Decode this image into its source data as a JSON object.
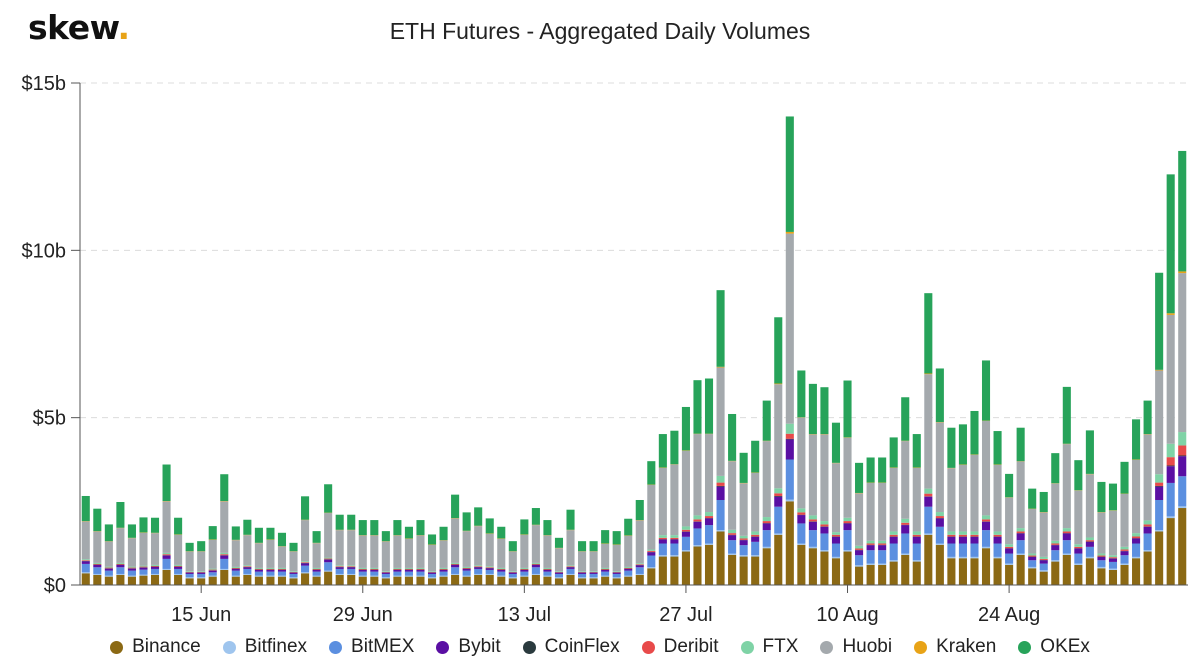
{
  "header": {
    "logo_text": "skew",
    "logo_dot": ".",
    "title": "ETH Futures - Aggregated Daily Volumes"
  },
  "chart_data": {
    "type": "bar",
    "stacked": true,
    "title": "ETH Futures - Aggregated Daily Volumes",
    "xlabel": "",
    "ylabel": "",
    "ylim": [
      0,
      15
    ],
    "y_unit": "billions USD",
    "y_ticks": [
      {
        "value": 0,
        "label": "$0"
      },
      {
        "value": 5,
        "label": "$5b"
      },
      {
        "value": 10,
        "label": "$10b"
      },
      {
        "value": 15,
        "label": "$15b"
      }
    ],
    "x_ticks": [
      {
        "index": 10,
        "label": "15 Jun"
      },
      {
        "index": 24,
        "label": "29 Jun"
      },
      {
        "index": 38,
        "label": "13 Jul"
      },
      {
        "index": 52,
        "label": "27 Jul"
      },
      {
        "index": 66,
        "label": "10 Aug"
      },
      {
        "index": 80,
        "label": "24 Aug"
      }
    ],
    "grid": true,
    "legend_position": "bottom",
    "series": [
      {
        "name": "Binance",
        "color": "#8b6914",
        "values": [
          0.35,
          0.3,
          0.25,
          0.3,
          0.25,
          0.28,
          0.3,
          0.45,
          0.3,
          0.2,
          0.2,
          0.25,
          0.45,
          0.25,
          0.3,
          0.25,
          0.25,
          0.25,
          0.2,
          0.35,
          0.25,
          0.4,
          0.3,
          0.3,
          0.25,
          0.25,
          0.2,
          0.25,
          0.25,
          0.25,
          0.2,
          0.25,
          0.3,
          0.25,
          0.3,
          0.3,
          0.25,
          0.2,
          0.25,
          0.3,
          0.25,
          0.2,
          0.3,
          0.2,
          0.2,
          0.25,
          0.2,
          0.25,
          0.3,
          0.5,
          0.85,
          0.85,
          1.0,
          1.15,
          1.2,
          1.6,
          0.9,
          0.85,
          0.85,
          1.1,
          1.5,
          2.5,
          1.2,
          1.1,
          1.0,
          0.8,
          1.0,
          0.55,
          0.6,
          0.6,
          0.7,
          0.9,
          0.7,
          1.5,
          1.2,
          0.8,
          0.8,
          0.8,
          1.1,
          0.8,
          0.6,
          0.9,
          0.5,
          0.4,
          0.7,
          0.9,
          0.6,
          0.8,
          0.5,
          0.45,
          0.6,
          0.8,
          1.0,
          1.6,
          2.0,
          2.3
        ]
      },
      {
        "name": "Bitfinex",
        "color": "#9fc5ee",
        "values": [
          0.03,
          0.03,
          0.03,
          0.03,
          0.03,
          0.03,
          0.03,
          0.03,
          0.03,
          0.03,
          0.03,
          0.03,
          0.03,
          0.03,
          0.03,
          0.03,
          0.03,
          0.03,
          0.03,
          0.03,
          0.03,
          0.03,
          0.03,
          0.03,
          0.03,
          0.03,
          0.03,
          0.03,
          0.03,
          0.03,
          0.03,
          0.03,
          0.03,
          0.03,
          0.03,
          0.03,
          0.03,
          0.03,
          0.03,
          0.03,
          0.03,
          0.03,
          0.03,
          0.03,
          0.03,
          0.03,
          0.03,
          0.03,
          0.03,
          0.03,
          0.04,
          0.04,
          0.04,
          0.04,
          0.04,
          0.04,
          0.04,
          0.04,
          0.04,
          0.04,
          0.04,
          0.05,
          0.04,
          0.04,
          0.04,
          0.04,
          0.04,
          0.04,
          0.04,
          0.04,
          0.04,
          0.04,
          0.04,
          0.04,
          0.04,
          0.04,
          0.04,
          0.04,
          0.04,
          0.04,
          0.04,
          0.04,
          0.04,
          0.04,
          0.04,
          0.04,
          0.04,
          0.04,
          0.04,
          0.04,
          0.04,
          0.04,
          0.04,
          0.04,
          0.05,
          0.05
        ]
      },
      {
        "name": "BitMEX",
        "color": "#5b8fe0",
        "values": [
          0.25,
          0.2,
          0.15,
          0.2,
          0.15,
          0.15,
          0.15,
          0.3,
          0.15,
          0.1,
          0.1,
          0.1,
          0.3,
          0.15,
          0.15,
          0.12,
          0.12,
          0.12,
          0.1,
          0.2,
          0.12,
          0.25,
          0.15,
          0.15,
          0.12,
          0.12,
          0.1,
          0.12,
          0.12,
          0.12,
          0.1,
          0.12,
          0.2,
          0.15,
          0.15,
          0.12,
          0.12,
          0.1,
          0.12,
          0.2,
          0.12,
          0.1,
          0.15,
          0.1,
          0.1,
          0.12,
          0.1,
          0.15,
          0.2,
          0.35,
          0.35,
          0.35,
          0.4,
          0.5,
          0.55,
          0.9,
          0.4,
          0.3,
          0.4,
          0.5,
          0.8,
          1.2,
          0.6,
          0.5,
          0.5,
          0.4,
          0.6,
          0.3,
          0.4,
          0.4,
          0.5,
          0.6,
          0.5,
          0.8,
          0.5,
          0.4,
          0.4,
          0.4,
          0.5,
          0.4,
          0.3,
          0.4,
          0.2,
          0.2,
          0.3,
          0.4,
          0.3,
          0.3,
          0.2,
          0.2,
          0.25,
          0.4,
          0.5,
          0.9,
          1.0,
          0.9
        ]
      },
      {
        "name": "Bybit",
        "color": "#5a0fa3",
        "values": [
          0.08,
          0.07,
          0.06,
          0.07,
          0.06,
          0.06,
          0.06,
          0.1,
          0.06,
          0.04,
          0.04,
          0.05,
          0.1,
          0.05,
          0.05,
          0.05,
          0.05,
          0.05,
          0.04,
          0.07,
          0.05,
          0.08,
          0.05,
          0.05,
          0.05,
          0.05,
          0.04,
          0.05,
          0.05,
          0.05,
          0.04,
          0.05,
          0.07,
          0.05,
          0.05,
          0.05,
          0.05,
          0.04,
          0.05,
          0.07,
          0.05,
          0.04,
          0.05,
          0.04,
          0.04,
          0.05,
          0.04,
          0.05,
          0.06,
          0.1,
          0.12,
          0.12,
          0.15,
          0.2,
          0.2,
          0.4,
          0.15,
          0.15,
          0.15,
          0.2,
          0.3,
          0.6,
          0.25,
          0.25,
          0.2,
          0.2,
          0.2,
          0.15,
          0.15,
          0.15,
          0.2,
          0.25,
          0.2,
          0.3,
          0.25,
          0.2,
          0.2,
          0.2,
          0.25,
          0.2,
          0.15,
          0.2,
          0.1,
          0.1,
          0.15,
          0.2,
          0.15,
          0.15,
          0.1,
          0.1,
          0.12,
          0.15,
          0.2,
          0.4,
          0.5,
          0.6
        ]
      },
      {
        "name": "CoinFlex",
        "color": "#2a3a3e",
        "values": [
          0.01,
          0.01,
          0.01,
          0.01,
          0.01,
          0.01,
          0.01,
          0.01,
          0.01,
          0.01,
          0.01,
          0.01,
          0.01,
          0.01,
          0.01,
          0.01,
          0.01,
          0.01,
          0.01,
          0.01,
          0.01,
          0.01,
          0.01,
          0.01,
          0.01,
          0.01,
          0.01,
          0.01,
          0.01,
          0.01,
          0.01,
          0.01,
          0.01,
          0.01,
          0.01,
          0.01,
          0.01,
          0.01,
          0.01,
          0.01,
          0.01,
          0.01,
          0.01,
          0.01,
          0.01,
          0.01,
          0.01,
          0.01,
          0.01,
          0.01,
          0.01,
          0.01,
          0.01,
          0.01,
          0.01,
          0.02,
          0.01,
          0.01,
          0.01,
          0.01,
          0.02,
          0.02,
          0.01,
          0.01,
          0.01,
          0.01,
          0.01,
          0.01,
          0.01,
          0.01,
          0.01,
          0.01,
          0.01,
          0.01,
          0.01,
          0.01,
          0.01,
          0.01,
          0.01,
          0.01,
          0.01,
          0.01,
          0.01,
          0.01,
          0.01,
          0.01,
          0.01,
          0.01,
          0.01,
          0.01,
          0.01,
          0.01,
          0.01,
          0.02,
          0.02,
          0.02
        ]
      },
      {
        "name": "Deribit",
        "color": "#e84a4a",
        "values": [
          0.02,
          0.02,
          0.02,
          0.02,
          0.02,
          0.02,
          0.02,
          0.03,
          0.02,
          0.01,
          0.01,
          0.02,
          0.03,
          0.02,
          0.02,
          0.02,
          0.02,
          0.02,
          0.01,
          0.02,
          0.02,
          0.02,
          0.02,
          0.02,
          0.02,
          0.02,
          0.01,
          0.02,
          0.02,
          0.02,
          0.01,
          0.02,
          0.02,
          0.02,
          0.02,
          0.02,
          0.02,
          0.01,
          0.02,
          0.02,
          0.02,
          0.01,
          0.02,
          0.01,
          0.01,
          0.02,
          0.01,
          0.02,
          0.02,
          0.03,
          0.04,
          0.04,
          0.05,
          0.06,
          0.06,
          0.1,
          0.05,
          0.04,
          0.05,
          0.06,
          0.08,
          0.15,
          0.07,
          0.06,
          0.06,
          0.05,
          0.06,
          0.04,
          0.04,
          0.04,
          0.05,
          0.06,
          0.05,
          0.08,
          0.06,
          0.05,
          0.05,
          0.05,
          0.06,
          0.05,
          0.04,
          0.05,
          0.03,
          0.03,
          0.04,
          0.05,
          0.04,
          0.04,
          0.03,
          0.03,
          0.04,
          0.05,
          0.06,
          0.1,
          0.25,
          0.3
        ]
      },
      {
        "name": "FTX",
        "color": "#7fd3a6",
        "values": [
          0.03,
          0.03,
          0.03,
          0.03,
          0.03,
          0.03,
          0.03,
          0.04,
          0.03,
          0.02,
          0.02,
          0.03,
          0.04,
          0.03,
          0.03,
          0.03,
          0.03,
          0.03,
          0.02,
          0.03,
          0.03,
          0.03,
          0.03,
          0.03,
          0.03,
          0.03,
          0.02,
          0.03,
          0.03,
          0.03,
          0.02,
          0.03,
          0.03,
          0.03,
          0.03,
          0.03,
          0.03,
          0.02,
          0.03,
          0.03,
          0.03,
          0.02,
          0.03,
          0.02,
          0.02,
          0.03,
          0.02,
          0.03,
          0.03,
          0.04,
          0.08,
          0.08,
          0.1,
          0.12,
          0.12,
          0.2,
          0.1,
          0.08,
          0.1,
          0.12,
          0.15,
          0.3,
          0.12,
          0.12,
          0.1,
          0.08,
          0.1,
          0.08,
          0.08,
          0.08,
          0.1,
          0.12,
          0.1,
          0.15,
          0.12,
          0.1,
          0.1,
          0.1,
          0.12,
          0.1,
          0.08,
          0.1,
          0.06,
          0.06,
          0.08,
          0.1,
          0.08,
          0.08,
          0.06,
          0.06,
          0.08,
          0.1,
          0.12,
          0.25,
          0.4,
          0.4
        ]
      },
      {
        "name": "Huobi",
        "color": "#a4a9ad",
        "values": [
          1.13,
          0.94,
          0.75,
          1.04,
          0.85,
          0.98,
          0.95,
          1.54,
          0.9,
          0.59,
          0.59,
          0.86,
          1.54,
          0.8,
          0.9,
          0.74,
          0.84,
          0.64,
          0.59,
          1.23,
          0.74,
          1.33,
          1.05,
          1.05,
          0.97,
          0.97,
          0.89,
          0.97,
          0.87,
          0.97,
          0.79,
          0.82,
          1.33,
          1.07,
          1.17,
          0.97,
          0.87,
          0.59,
          0.99,
          1.13,
          0.97,
          0.69,
          1.05,
          0.59,
          0.59,
          0.72,
          0.79,
          0.93,
          1.28,
          1.93,
          2.01,
          2.11,
          2.26,
          2.43,
          2.33,
          3.24,
          2.05,
          1.57,
          1.75,
          2.27,
          3.11,
          5.68,
          2.71,
          2.42,
          2.59,
          2.06,
          2.39,
          1.57,
          1.73,
          1.73,
          1.9,
          2.32,
          1.9,
          3.42,
          2.68,
          1.89,
          1.99,
          2.29,
          2.82,
          1.99,
          1.39,
          1.99,
          1.33,
          1.33,
          1.71,
          2.51,
          1.6,
          1.89,
          1.23,
          1.33,
          1.58,
          2.19,
          2.57,
          3.1,
          3.85,
          4.75
        ]
      },
      {
        "name": "Kraken",
        "color": "#e8a317",
        "values": [
          0.01,
          0.01,
          0.01,
          0.01,
          0.01,
          0.01,
          0.01,
          0.01,
          0.01,
          0.01,
          0.01,
          0.01,
          0.01,
          0.01,
          0.01,
          0.01,
          0.01,
          0.01,
          0.01,
          0.01,
          0.01,
          0.01,
          0.01,
          0.01,
          0.01,
          0.01,
          0.01,
          0.01,
          0.01,
          0.01,
          0.01,
          0.01,
          0.01,
          0.01,
          0.01,
          0.01,
          0.01,
          0.01,
          0.01,
          0.01,
          0.01,
          0.01,
          0.01,
          0.01,
          0.01,
          0.01,
          0.01,
          0.01,
          0.01,
          0.01,
          0.01,
          0.01,
          0.01,
          0.01,
          0.01,
          0.02,
          0.01,
          0.01,
          0.01,
          0.01,
          0.02,
          0.05,
          0.01,
          0.01,
          0.01,
          0.01,
          0.01,
          0.01,
          0.01,
          0.01,
          0.01,
          0.01,
          0.01,
          0.02,
          0.01,
          0.01,
          0.01,
          0.01,
          0.01,
          0.01,
          0.01,
          0.01,
          0.01,
          0.01,
          0.01,
          0.01,
          0.01,
          0.01,
          0.01,
          0.01,
          0.01,
          0.01,
          0.01,
          0.02,
          0.05,
          0.05
        ]
      },
      {
        "name": "OKEx",
        "color": "#27a35a",
        "values": [
          0.75,
          0.67,
          0.5,
          0.77,
          0.4,
          0.45,
          0.45,
          1.09,
          0.5,
          0.25,
          0.3,
          0.4,
          0.8,
          0.4,
          0.45,
          0.45,
          0.35,
          0.4,
          0.25,
          0.7,
          0.35,
          0.85,
          0.45,
          0.45,
          0.45,
          0.45,
          0.3,
          0.45,
          0.35,
          0.45,
          0.3,
          0.4,
          0.7,
          0.55,
          0.55,
          0.45,
          0.35,
          0.3,
          0.45,
          0.5,
          0.45,
          0.3,
          0.6,
          0.3,
          0.3,
          0.4,
          0.4,
          0.5,
          0.6,
          0.7,
          1.0,
          1.0,
          1.3,
          1.6,
          1.65,
          2.29,
          1.4,
          0.9,
          0.95,
          1.2,
          1.98,
          3.45,
          1.4,
          1.5,
          1.4,
          1.2,
          1.7,
          0.9,
          0.75,
          0.75,
          0.9,
          1.3,
          1.0,
          2.4,
          1.6,
          1.2,
          1.2,
          1.3,
          1.8,
          1.0,
          0.7,
          1.0,
          0.6,
          0.6,
          0.9,
          1.7,
          0.9,
          1.3,
          0.9,
          0.8,
          0.95,
          1.2,
          1.0,
          2.9,
          4.15,
          3.6
        ]
      }
    ]
  }
}
